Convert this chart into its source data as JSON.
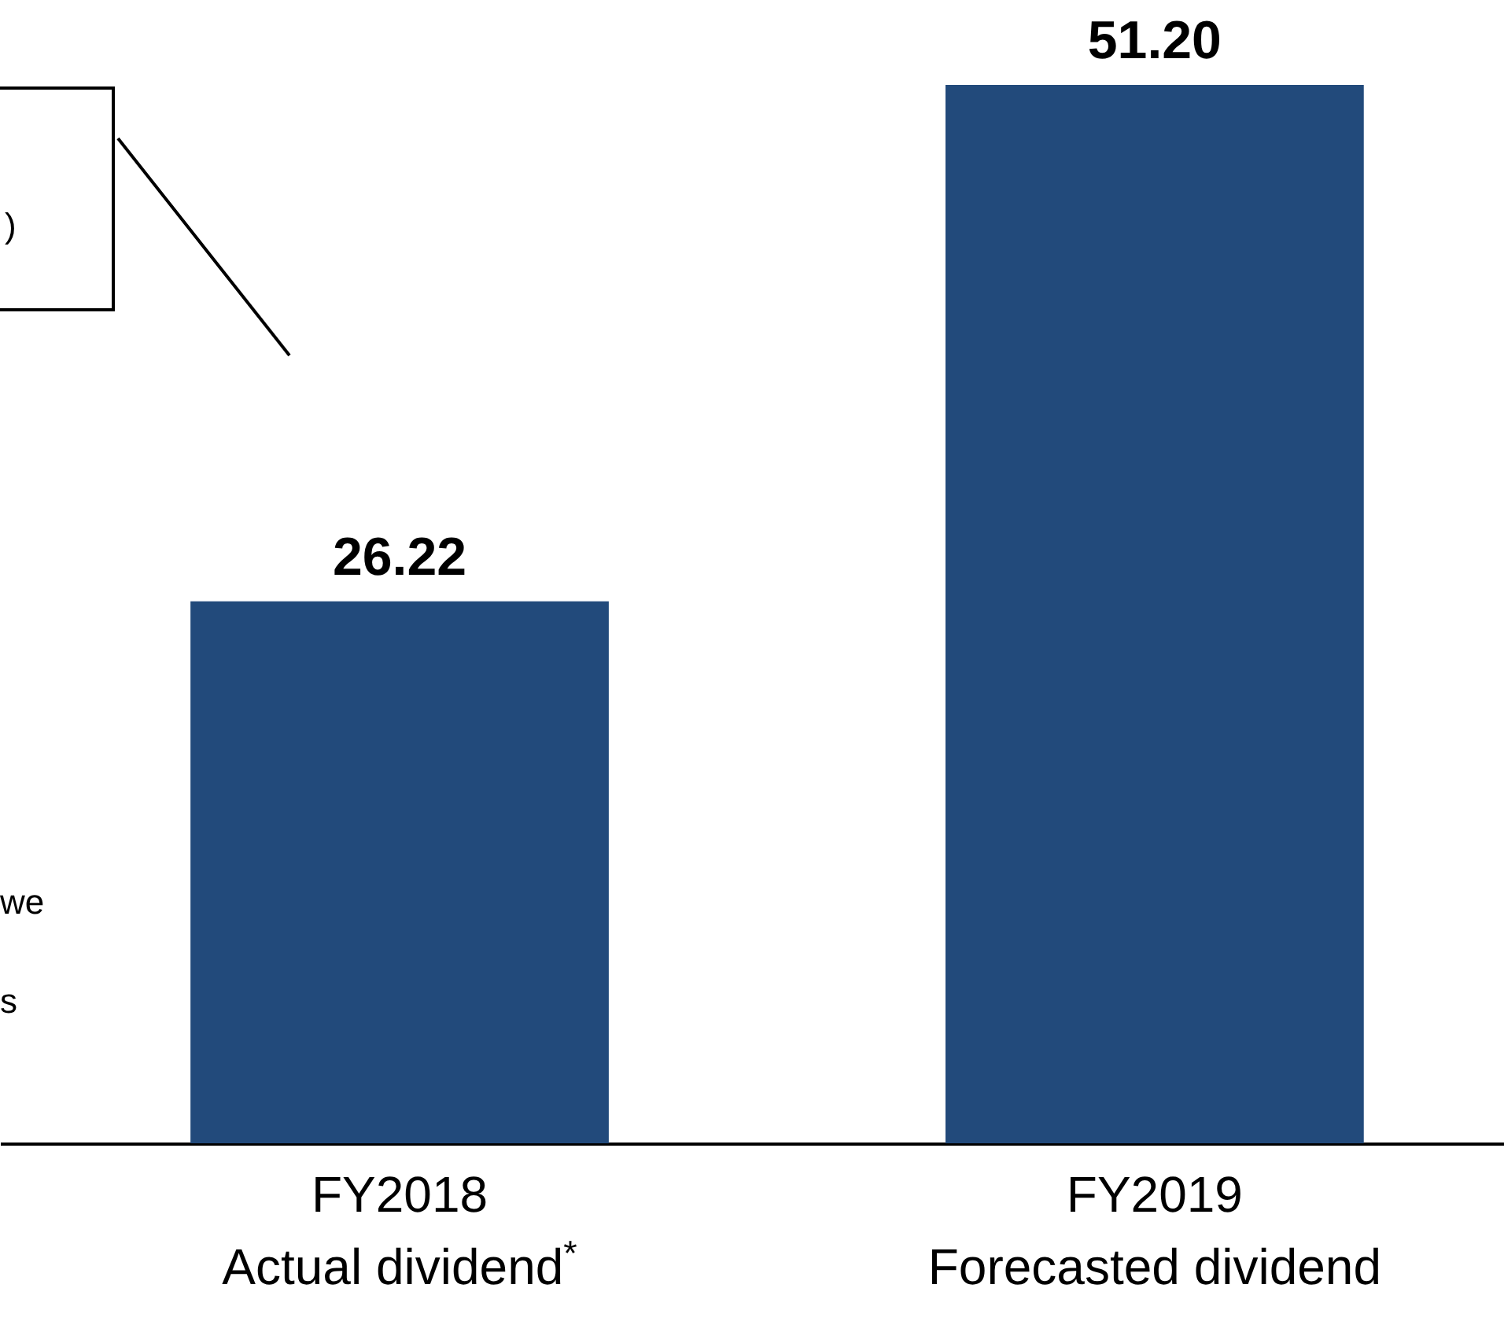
{
  "chart_data": {
    "type": "bar",
    "categories": [
      "FY2018\nActual dividend$^{*}$",
      "FY2019\nForecasted dividend"
    ],
    "values": [
      26.22,
      51.2
    ],
    "value_labels": [
      "26.22",
      "51.20"
    ],
    "color": "#224a7b",
    "annotations": [
      ")",
      "we",
      "s"
    ]
  }
}
